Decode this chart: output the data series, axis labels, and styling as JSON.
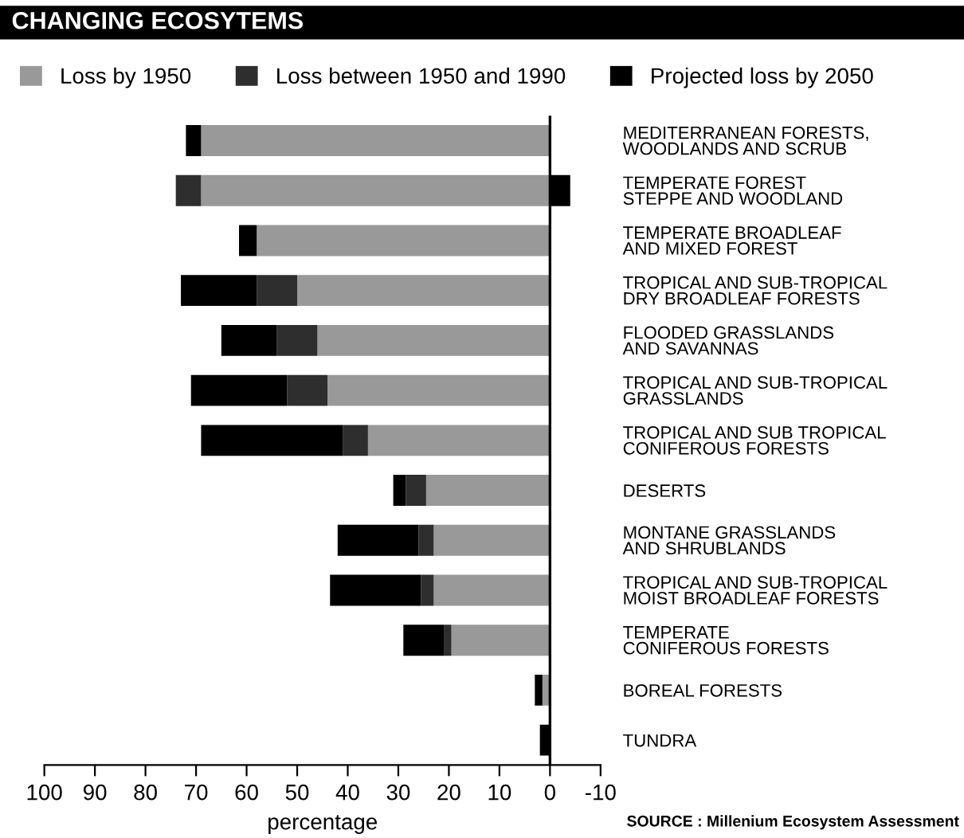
{
  "chart_data": {
    "type": "bar",
    "orientation": "horizontal",
    "stacked": true,
    "title": "CHANGING ECOSYTEMS",
    "categories": [
      "MEDITERRANEAN FORESTS,\nWOODLANDS AND SCRUB",
      "TEMPERATE FOREST\nSTEPPE AND WOODLAND",
      "TEMPERATE BROADLEAF\nAND MIXED FOREST",
      "TROPICAL AND SUB-TROPICAL\nDRY BROADLEAF FORESTS",
      "FLOODED GRASSLANDS\nAND SAVANNAS",
      "TROPICAL AND SUB-TROPICAL\nGRASSLANDS",
      "TROPICAL AND SUB TROPICAL\nCONIFEROUS FORESTS",
      "DESERTS",
      "MONTANE GRASSLANDS\nAND SHRUBLANDS",
      "TROPICAL AND SUB-TROPICAL\nMOIST BROADLEAF FORESTS",
      "TEMPERATE\nCONIFEROUS FORESTS",
      "BOREAL FORESTS",
      "TUNDRA"
    ],
    "series": [
      {
        "name": "Loss by 1950",
        "color": "#999999",
        "values": [
          69,
          69,
          58,
          50,
          46,
          44,
          36,
          24.5,
          23,
          23,
          19.5,
          1.5,
          0
        ]
      },
      {
        "name": "Loss between 1950 and 1990",
        "color": "#2e2e2e",
        "values": [
          0,
          5,
          0,
          8,
          8,
          8,
          5,
          4,
          3,
          2.5,
          1.5,
          0,
          0
        ]
      },
      {
        "name": "Projected loss by 2050",
        "color": "#000000",
        "values": [
          3,
          -4,
          3.5,
          15,
          11,
          19,
          28,
          2.5,
          16,
          18,
          8,
          1.5,
          2
        ]
      }
    ],
    "xlim": [
      100,
      -10
    ],
    "xticks": [
      100,
      90,
      80,
      70,
      60,
      50,
      40,
      30,
      20,
      10,
      0,
      -10
    ],
    "xlabel": "percentage",
    "legend": "top",
    "grid": false,
    "ref_lines": [
      {
        "axis": "x",
        "value": 0,
        "color": "#000000"
      }
    ],
    "annotations": [
      "SOURCE : Millenium Ecosystem Assessment"
    ]
  }
}
